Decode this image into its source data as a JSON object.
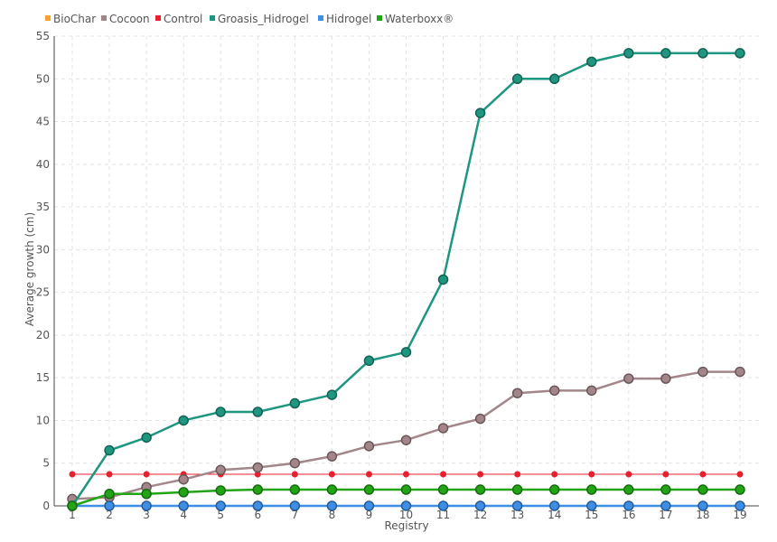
{
  "chart_data": {
    "type": "line",
    "title": "",
    "xlabel": "Registry",
    "ylabel": "Average growth (cm)",
    "ylim": [
      0,
      55
    ],
    "y_ticks": [
      0,
      5,
      10,
      15,
      20,
      25,
      30,
      35,
      40,
      45,
      50,
      55
    ],
    "x": [
      "1",
      "2",
      "3",
      "4",
      "5",
      "6",
      "7",
      "8",
      "9",
      "10",
      "11",
      "12",
      "13",
      "14",
      "15",
      "16",
      "17",
      "18",
      "19"
    ],
    "grid": true,
    "legend_position": "top-left",
    "series": [
      {
        "name": "BioChar",
        "color": "#f7a130",
        "show_markers": false,
        "values": [
          null,
          null,
          null,
          null,
          null,
          null,
          null,
          null,
          null,
          null,
          null,
          null,
          null,
          null,
          null,
          null,
          null,
          null,
          null
        ]
      },
      {
        "name": "Cocoon",
        "color": "#a3868a",
        "show_markers": true,
        "values": [
          0.8,
          1.0,
          2.2,
          3.1,
          4.2,
          4.5,
          5.0,
          5.8,
          7.0,
          7.7,
          9.1,
          10.2,
          13.2,
          13.5,
          13.5,
          14.9,
          14.9,
          15.7,
          15.7
        ]
      },
      {
        "name": "Control",
        "color": "#e8202e",
        "show_markers": true,
        "marker": "small",
        "values": [
          3.7,
          3.7,
          3.7,
          3.7,
          3.7,
          3.7,
          3.7,
          3.7,
          3.7,
          3.7,
          3.7,
          3.7,
          3.7,
          3.7,
          3.7,
          3.7,
          3.7,
          3.7,
          3.7
        ]
      },
      {
        "name": "Groasis_Hidrogel",
        "color": "#1e9680",
        "show_markers": true,
        "values": [
          0,
          6.5,
          8.0,
          10.0,
          11.0,
          11.0,
          12.0,
          13.0,
          17.0,
          18.0,
          26.5,
          46.0,
          50.0,
          50.0,
          52.0,
          53.0,
          53.0,
          53.0,
          53.0
        ]
      },
      {
        "name": "Hidrogel",
        "color": "#3e8ee6",
        "show_markers": true,
        "values": [
          0,
          0,
          0,
          0,
          0,
          0,
          0,
          0,
          0,
          0,
          0,
          0,
          0,
          0,
          0,
          0,
          0,
          0,
          0
        ]
      },
      {
        "name": "Waterboxx®",
        "color": "#22a416",
        "show_markers": true,
        "values": [
          0,
          1.4,
          1.4,
          1.6,
          1.8,
          1.9,
          1.9,
          1.9,
          1.9,
          1.9,
          1.9,
          1.9,
          1.9,
          1.9,
          1.9,
          1.9,
          1.9,
          1.9,
          1.9
        ]
      }
    ]
  }
}
